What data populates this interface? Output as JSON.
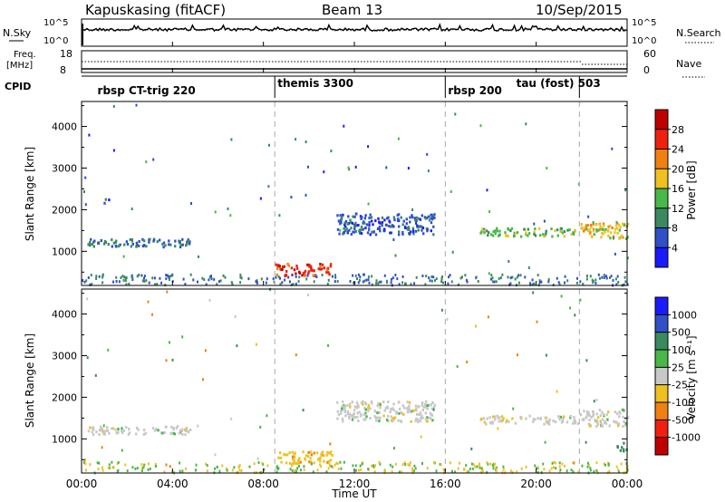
{
  "header": {
    "station": "Kapuskasing (fitACF)",
    "beam": "Beam 13",
    "date": "10/Sep/2015"
  },
  "noise_panel": {
    "left_label": "N.Sky",
    "left_ticks": [
      "10^5",
      "10^0"
    ],
    "right_label": "N.Search",
    "right_ticks": [
      "10^5",
      "10^0"
    ]
  },
  "freq_panel": {
    "left_label_1": "Freq.",
    "left_label_2": "[MHz]",
    "left_ticks": [
      "18",
      "8"
    ],
    "right_label": "Nave",
    "right_ticks": [
      "60",
      "0"
    ]
  },
  "cpid_panel": {
    "label": "CPID",
    "segments": [
      {
        "name": "rbsp CT-trig 220",
        "start_hour": 0.7
      },
      {
        "name": "themis 3300",
        "start_hour": 8.5
      },
      {
        "name": "rbsp 200",
        "start_hour": 16.0
      },
      {
        "name": "tau (fost) 503",
        "start_hour": 19.0
      }
    ],
    "boundaries_hour": [
      8.5,
      16.0,
      21.9
    ]
  },
  "axes": {
    "x_ticks": [
      "00:00",
      "04:00",
      "08:00",
      "12:00",
      "16:00",
      "20:00",
      "00:00"
    ],
    "x_range_hours": [
      0,
      24
    ],
    "x_label": "Time UT",
    "y_label": "Slant Range [km]",
    "y_ticks": [
      "1000",
      "2000",
      "3000",
      "4000"
    ],
    "y_range_km": [
      180,
      4600
    ],
    "dashed_lines_hour": [
      8.5,
      16.0,
      21.9
    ]
  },
  "power_scale": {
    "title": "Power [dB]",
    "labels": [
      "4",
      "8",
      "12",
      "16",
      "20",
      "24",
      "28"
    ],
    "colors": [
      "#1a1aff",
      "#3050c8",
      "#3a8a60",
      "#48b848",
      "#f0c020",
      "#f08010",
      "#f02010",
      "#c00000"
    ]
  },
  "velocity_scale": {
    "title": "Velocity [m s⁻¹]",
    "labels": [
      "1000",
      "500",
      "100",
      "25",
      "-25",
      "-100",
      "-500",
      "-1000"
    ],
    "colors": [
      "#1a1aff",
      "#3050c8",
      "#3a8a60",
      "#48b848",
      "#c8c8c8",
      "#f0c020",
      "#f08010",
      "#f02010",
      "#c00000"
    ]
  },
  "chart_data": [
    {
      "type": "heatmap",
      "title": "Power [dB]",
      "xlabel": "Time UT",
      "ylabel": "Slant Range [km]",
      "xlim_hours": [
        0,
        24
      ],
      "ylim_km": [
        180,
        4600
      ],
      "features": [
        {
          "t_start": 0.2,
          "t_end": 4.8,
          "range_km": [
            1100,
            1300
          ],
          "value_db": 8
        },
        {
          "t_start": 0.9,
          "t_end": 1.3,
          "range_km": [
            2150,
            2250
          ],
          "value_db": 6
        },
        {
          "t_start": 8.5,
          "t_end": 11.0,
          "range_km": [
            400,
            700
          ],
          "value_db": 26
        },
        {
          "t_start": 11.2,
          "t_end": 15.5,
          "range_km": [
            1400,
            1900
          ],
          "value_db": 6
        },
        {
          "t_start": 17.5,
          "t_end": 21.8,
          "range_km": [
            1350,
            1550
          ],
          "value_db": 14
        },
        {
          "t_start": 21.9,
          "t_end": 24.0,
          "range_km": [
            1300,
            1700
          ],
          "value_db": 18
        }
      ]
    },
    {
      "type": "heatmap",
      "title": "Velocity [m s-1]",
      "xlabel": "Time UT",
      "ylabel": "Slant Range [km]",
      "xlim_hours": [
        0,
        24
      ],
      "ylim_km": [
        180,
        4600
      ],
      "features": [
        {
          "t_start": 0.2,
          "t_end": 4.8,
          "range_km": [
            1100,
            1300
          ],
          "value_ms": 0
        },
        {
          "t_start": 8.5,
          "t_end": 11.0,
          "range_km": [
            400,
            700
          ],
          "value_ms": -80
        },
        {
          "t_start": 11.2,
          "t_end": 15.5,
          "range_km": [
            1400,
            1900
          ],
          "value_ms": 0
        },
        {
          "t_start": 17.5,
          "t_end": 21.8,
          "range_km": [
            1350,
            1550
          ],
          "value_ms": 0
        },
        {
          "t_start": 21.9,
          "t_end": 24.0,
          "range_km": [
            1300,
            1700
          ],
          "value_ms": 0
        },
        {
          "t_start": 23.5,
          "t_end": 24.0,
          "range_km": [
            700,
            900
          ],
          "value_ms": 200
        }
      ]
    }
  ]
}
